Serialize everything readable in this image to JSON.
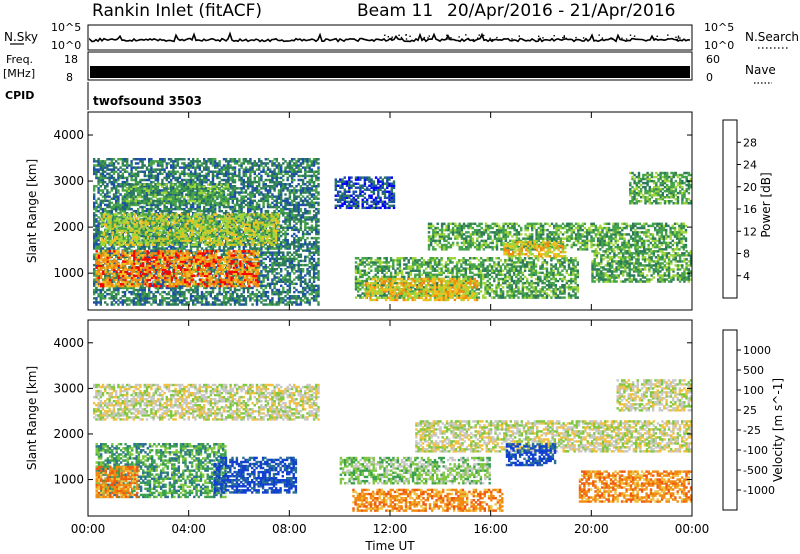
{
  "header": {
    "station": "Rankin Inlet (fitACF)",
    "beam": "Beam 11",
    "dates": "20/Apr/2016 - 21/Apr/2016"
  },
  "top_panels": {
    "nsky": {
      "label": "N.Sky",
      "ticks": [
        "10^5",
        "10^0"
      ],
      "right_ticks": [
        "10^5",
        "10^0"
      ],
      "right_label": "N.Search"
    },
    "freq": {
      "label_line1": "Freq.",
      "label_line2": "[MHz]",
      "ticks": [
        "18",
        "8"
      ],
      "right_ticks": [
        "60",
        "0"
      ],
      "right_label": "Nave"
    },
    "cpid": {
      "label": "CPID",
      "value": "twofsound 3503"
    }
  },
  "chart_data": [
    {
      "type": "heatmap",
      "ylabel": "Slant Range [km]",
      "ylim": [
        200,
        4500
      ],
      "yticks": [
        "4000",
        "3000",
        "2000",
        "1000"
      ],
      "colorbar": {
        "label": "Power [dB]",
        "ticks": [
          "28",
          "24",
          "20",
          "16",
          "12",
          "8",
          "4"
        ],
        "colors": [
          "#0000ff",
          "#1c4fa8",
          "#2c7a5a",
          "#45a34a",
          "#9fd63a",
          "#f0c020",
          "#f08a10",
          "#ff0000"
        ]
      },
      "bands": [
        {
          "t0": 0.2,
          "t1": 9.2,
          "r0": 300,
          "r1": 3500,
          "level": 2
        },
        {
          "t0": 0.3,
          "t1": 6.8,
          "r0": 700,
          "r1": 1500,
          "level": 6
        },
        {
          "t0": 0.5,
          "t1": 7.6,
          "r0": 1600,
          "r1": 2300,
          "level": 4
        },
        {
          "t0": 1.5,
          "t1": 5.6,
          "r0": 2500,
          "r1": 2950,
          "level": 3
        },
        {
          "t0": 10.6,
          "t1": 19.5,
          "r0": 450,
          "r1": 1350,
          "level": 3
        },
        {
          "t0": 11.0,
          "t1": 15.5,
          "r0": 400,
          "r1": 900,
          "level": 5
        },
        {
          "t0": 13.5,
          "t1": 23.8,
          "r0": 1500,
          "r1": 2100,
          "level": 3
        },
        {
          "t0": 16.5,
          "t1": 19.0,
          "r0": 1350,
          "r1": 1700,
          "level": 5
        },
        {
          "t0": 20.0,
          "t1": 24.0,
          "r0": 800,
          "r1": 1500,
          "level": 3
        },
        {
          "t0": 21.5,
          "t1": 24.0,
          "r0": 2500,
          "r1": 3200,
          "level": 3
        },
        {
          "t0": 9.8,
          "t1": 12.2,
          "r0": 2400,
          "r1": 3100,
          "level": 1
        }
      ]
    },
    {
      "type": "heatmap",
      "ylabel": "Slant Range [km]",
      "ylim": [
        200,
        4500
      ],
      "yticks": [
        "4000",
        "3000",
        "2000",
        "1000"
      ],
      "xlabel": "Time UT",
      "xticks": [
        "00:00",
        "04:00",
        "08:00",
        "12:00",
        "16:00",
        "20:00",
        "00:00"
      ],
      "colorbar": {
        "label": "Velocity [m s^-1]",
        "ticks": [
          "1000",
          "500",
          "100",
          "25",
          "-25",
          "-100",
          "-500",
          "-1000"
        ],
        "colors": [
          "#ff0000",
          "#f05a10",
          "#f08a10",
          "#f0c040",
          "#c8c8c8",
          "#80c840",
          "#3aa050",
          "#2a7090",
          "#1040d0"
        ]
      },
      "bands": [
        {
          "t0": 0.2,
          "t1": 9.2,
          "r0": 2300,
          "r1": 3100,
          "level": 4
        },
        {
          "t0": 0.3,
          "t1": 5.5,
          "r0": 600,
          "r1": 1800,
          "level": 6
        },
        {
          "t0": 5.0,
          "t1": 8.3,
          "r0": 700,
          "r1": 1500,
          "level": 8
        },
        {
          "t0": 0.3,
          "t1": 2.0,
          "r0": 600,
          "r1": 1300,
          "level": 2
        },
        {
          "t0": 10.5,
          "t1": 16.5,
          "r0": 300,
          "r1": 800,
          "level": 2
        },
        {
          "t0": 13.0,
          "t1": 24.0,
          "r0": 1600,
          "r1": 2300,
          "level": 4
        },
        {
          "t0": 16.6,
          "t1": 18.6,
          "r0": 1300,
          "r1": 1800,
          "level": 8
        },
        {
          "t0": 19.5,
          "t1": 24.0,
          "r0": 500,
          "r1": 1200,
          "level": 2
        },
        {
          "t0": 21.0,
          "t1": 24.0,
          "r0": 2500,
          "r1": 3200,
          "level": 4
        },
        {
          "t0": 10.0,
          "t1": 16.0,
          "r0": 900,
          "r1": 1500,
          "level": 5
        }
      ]
    }
  ]
}
